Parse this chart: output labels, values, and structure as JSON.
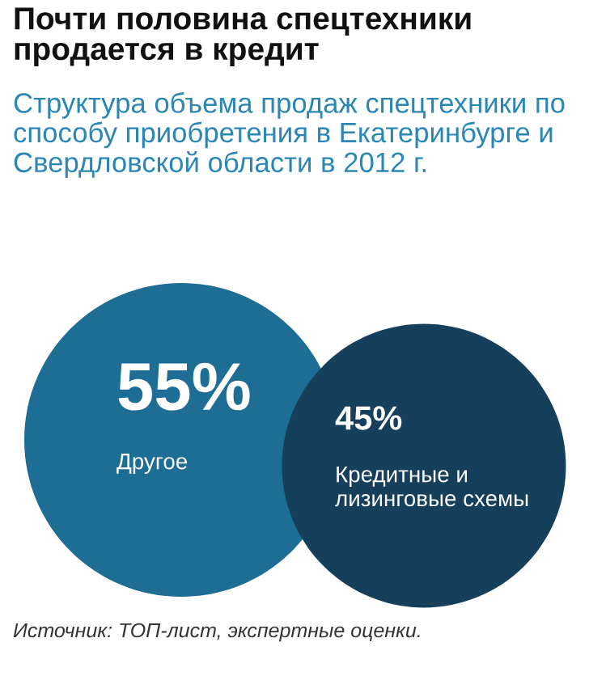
{
  "chart_data": {
    "type": "other",
    "title": "Почти половина спецтехники продается в кредит",
    "subtitle": "Структура объема продаж спецтехники по способу приобретения в Екатеринбурге и Свердловской области в 2012 г.",
    "categories": [
      "Другое",
      "Кредитные и лизинговые схемы"
    ],
    "values": [
      55,
      45
    ],
    "value_labels": [
      "55%",
      "45%"
    ],
    "colors": [
      "#1d6d94",
      "#163f5c"
    ],
    "annotations": [
      "Источник: ТОП-лист, экспертные оценки."
    ]
  }
}
